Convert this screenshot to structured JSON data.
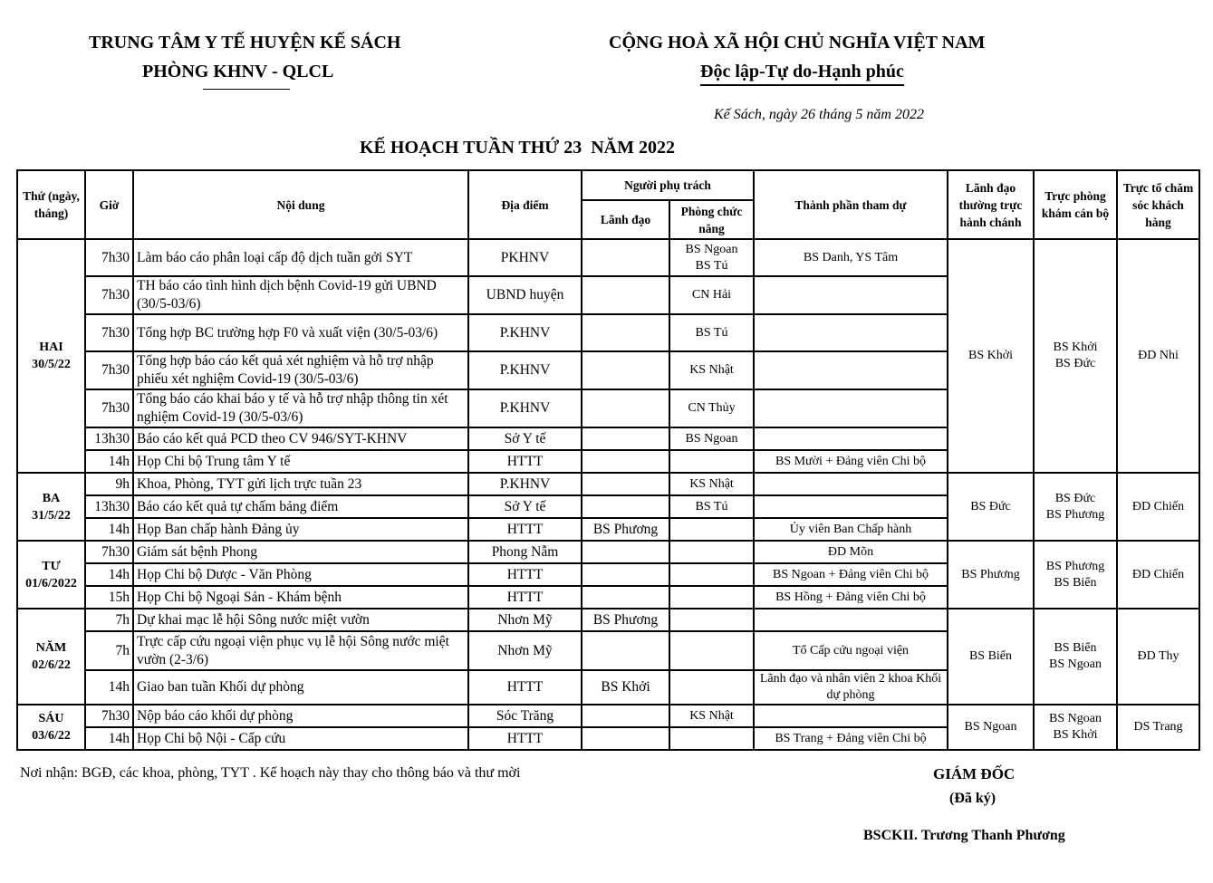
{
  "header": {
    "org1": "TRUNG TÂM Y TẾ HUYỆN KẾ SÁCH",
    "org2": "PHÒNG KHNV - QLCL",
    "nation": "CỘNG HOÀ XÃ HỘI CHỦ NGHĨA VIỆT NAM",
    "motto": "Độc lập-Tự do-Hạnh phúc",
    "date_line": "Kế Sách, ngày 26 tháng 5 năm 2022",
    "title": "KẾ HOẠCH TUẦN THỨ 23  NĂM 2022"
  },
  "columns": {
    "thu": "Thứ (ngày, tháng)",
    "gio": "Giờ",
    "noi_dung": "Nội dung",
    "dia_diem": "Địa điểm",
    "nguoi_phu_trach": "Người phụ trách",
    "lanh_dao": "Lãnh đạo",
    "phong": "Phòng chức năng",
    "thanh_phan": "Thành phần tham dự",
    "lanh_dao_truc": "Lãnh đạo thường trực hành chánh",
    "truc_phong_kham": "Trực phòng khám cán bộ",
    "truc_to": "Trực  tổ chăm sóc khách hàng"
  },
  "days": [
    {
      "day": "HAI",
      "date": "30/5/22",
      "lanh_dao_truc": "BS Khởi",
      "truc_phong_kham": "BS Khởi\nBS Đức",
      "truc_to": "ĐD Nhi",
      "rows": [
        {
          "gio": "7h30",
          "noi_dung": "Làm báo cáo phân loại cấp độ dịch tuần gởi SYT",
          "dia_diem": "PKHNV",
          "lanh_dao": "",
          "phong": "BS Ngoan\nBS Tú",
          "thanh_phan": "BS Danh, YS Tâm",
          "h": 41
        },
        {
          "gio": "7h30",
          "noi_dung": "TH báo cáo tình hình dịch bệnh Covid-19 gửi UBND (30/5-03/6)",
          "dia_diem": "UBND huyện",
          "lanh_dao": "",
          "phong": "CN Hải",
          "thanh_phan": "",
          "h": 41
        },
        {
          "gio": "7h30",
          "noi_dung": "Tổng hợp BC trường hợp F0 và xuất viện (30/5-03/6)",
          "dia_diem": "P.KHNV",
          "lanh_dao": "",
          "phong": "BS Tú",
          "thanh_phan": "",
          "h": 41
        },
        {
          "gio": "7h30",
          "noi_dung": "Tổng hợp báo cáo kết quả xét nghiệm và hỗ trợ nhập phiếu xét nghiệm Covid-19 (30/5-03/6)",
          "dia_diem": "P.KHNV",
          "lanh_dao": "",
          "phong": "KS Nhật",
          "thanh_phan": "",
          "h": 41
        },
        {
          "gio": "7h30",
          "noi_dung": "Tổng báo cáo khai báo y tế và hỗ trợ nhập thông tin xét nghiệm Covid-19 (30/5-03/6)",
          "dia_diem": "P.KHNV",
          "lanh_dao": "",
          "phong": "CN Thủy",
          "thanh_phan": "",
          "h": 41
        },
        {
          "gio": "13h30",
          "noi_dung": "Báo cáo kết quả PCD theo CV 946/SYT-KHNV",
          "dia_diem": "Sở Y tế",
          "lanh_dao": "",
          "phong": "BS Ngoan",
          "thanh_phan": "",
          "h": 25
        },
        {
          "gio": "14h",
          "noi_dung": "Họp Chi bộ Trung tâm Y tế",
          "dia_diem": "HTTT",
          "lanh_dao": "",
          "phong": "",
          "thanh_phan": "BS Mười + Đảng viên Chi bộ",
          "h": 25
        }
      ]
    },
    {
      "day": "BA",
      "date": "31/5/22",
      "lanh_dao_truc": "BS Đức",
      "truc_phong_kham": "BS Đức\nBS Phương",
      "truc_to": "ĐD Chiến",
      "rows": [
        {
          "gio": "9h",
          "noi_dung": "Khoa, Phòng, TYT gửi lịch trực tuần 23",
          "dia_diem": "P.KHNV",
          "lanh_dao": "",
          "phong": "KS Nhật",
          "thanh_phan": "",
          "h": 25
        },
        {
          "gio": "13h30",
          "noi_dung": "Báo cáo kết quả tự chấm bảng điểm",
          "dia_diem": "Sở Y tế",
          "lanh_dao": "",
          "phong": "BS Tú",
          "thanh_phan": "",
          "h": 25
        },
        {
          "gio": "14h",
          "noi_dung": "Họp Ban chấp hành Đảng ủy",
          "dia_diem": "HTTT",
          "lanh_dao": "BS Phương",
          "phong": "",
          "thanh_phan": "Ủy viên Ban Chấp hành",
          "h": 25
        }
      ]
    },
    {
      "day": "TƯ",
      "date": "01/6/2022",
      "lanh_dao_truc": "BS Phương",
      "truc_phong_kham": "BS Phương\nBS Biển",
      "truc_to": "ĐD Chiến",
      "rows": [
        {
          "gio": "7h30",
          "noi_dung": "Giám sát bệnh Phong",
          "dia_diem": "Phong Nẫm",
          "lanh_dao": "",
          "phong": "",
          "thanh_phan": "ĐD Mõn",
          "h": 25
        },
        {
          "gio": "14h",
          "noi_dung": "Họp Chi bộ Dược - Văn Phòng",
          "dia_diem": "HTTT",
          "lanh_dao": "",
          "phong": "",
          "thanh_phan": "BS Ngoan + Đảng viên Chi bộ",
          "h": 25
        },
        {
          "gio": "15h",
          "noi_dung": "Họp Chi bộ Ngoại Sản - Khám bệnh",
          "dia_diem": "HTTT",
          "lanh_dao": "",
          "phong": "",
          "thanh_phan": "BS Hồng + Đảng viên Chi bộ",
          "h": 25
        }
      ]
    },
    {
      "day": "NĂM",
      "date": "02/6/22",
      "lanh_dao_truc": "BS Biển",
      "truc_phong_kham": "BS Biển\nBS Ngoan",
      "truc_to": "ĐD Thy",
      "rows": [
        {
          "gio": "7h",
          "noi_dung": "Dự khai mạc lễ hội Sông nước miệt vườn",
          "dia_diem": "Nhơn Mỹ",
          "lanh_dao": "BS Phương",
          "phong": "",
          "thanh_phan": "",
          "h": 25
        },
        {
          "gio": "7h",
          "noi_dung": "Trực cấp cứu ngoại viện phục vụ lễ hội Sông nước miệt vườn (2-3/6)",
          "dia_diem": "Nhơn Mỹ",
          "lanh_dao": "",
          "phong": "",
          "thanh_phan": "Tổ Cấp cứu ngoại viện",
          "h": 43
        },
        {
          "gio": "14h",
          "noi_dung": "Giao ban tuần Khối dự phòng",
          "dia_diem": "HTTT",
          "lanh_dao": "BS Khởi",
          "phong": "",
          "thanh_phan": "Lãnh đạo và nhân viên 2 khoa Khối dự phòng",
          "h": 37
        }
      ]
    },
    {
      "day": "SÁU",
      "date": "03/6/22",
      "lanh_dao_truc": "BS Ngoan",
      "truc_phong_kham": "BS Ngoan\nBS Khởi",
      "truc_to": "DS Trang",
      "rows": [
        {
          "gio": "7h30",
          "noi_dung": "Nộp báo cáo khối dự phòng",
          "dia_diem": "Sóc Trăng",
          "lanh_dao": "",
          "phong": "KS Nhật",
          "thanh_phan": "",
          "h": 25
        },
        {
          "gio": "14h",
          "noi_dung": "Họp Chi bộ Nội - Cấp cứu",
          "dia_diem": "HTTT",
          "lanh_dao": "",
          "phong": "",
          "thanh_phan": "BS Trang + Đảng viên Chi bộ",
          "h": 25
        }
      ]
    }
  ],
  "footer": {
    "recipients": "Nơi nhận: BGĐ, các khoa, phòng, TYT . Kế hoạch này thay cho thông báo và thư mời",
    "director": "GIÁM ĐỐC",
    "signed": "(Đã ký)",
    "signer": "BSCKII. Trương Thanh Phương"
  }
}
